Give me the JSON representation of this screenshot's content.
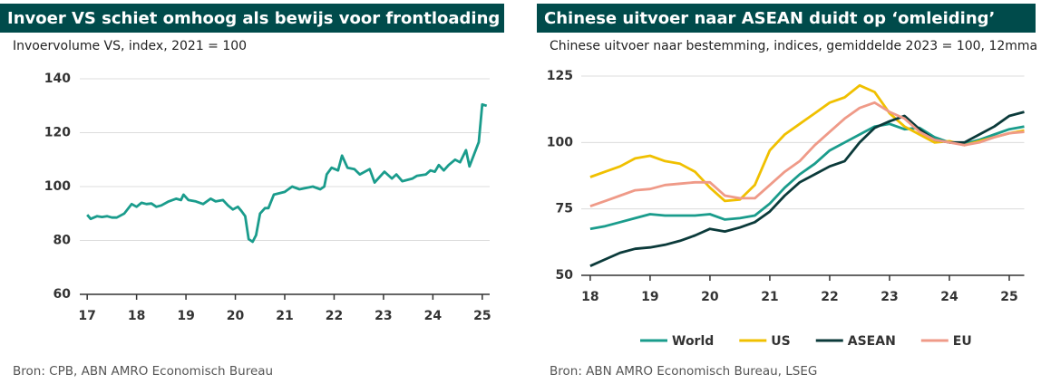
{
  "chart_data": [
    {
      "type": "line",
      "title": "Invoer VS schiet omhoog als bewijs voor frontloading",
      "subtitle": "Invoervolume VS, index, 2021 = 100",
      "source": "Bron: CPB, ABN AMRO Economisch Bureau",
      "color": "#1a9c8c",
      "x": [
        2017.0,
        2017.07,
        2017.2,
        2017.3,
        2017.4,
        2017.5,
        2017.6,
        2017.75,
        2017.9,
        2018.0,
        2018.1,
        2018.2,
        2018.3,
        2018.4,
        2018.5,
        2018.65,
        2018.8,
        2018.9,
        2018.95,
        2019.05,
        2019.2,
        2019.35,
        2019.5,
        2019.6,
        2019.75,
        2019.85,
        2019.95,
        2020.05,
        2020.12,
        2020.2,
        2020.27,
        2020.35,
        2020.42,
        2020.5,
        2020.6,
        2020.67,
        2020.78,
        2021.0,
        2021.15,
        2021.3,
        2021.57,
        2021.72,
        2021.8,
        2021.85,
        2021.95,
        2022.08,
        2022.16,
        2022.27,
        2022.41,
        2022.52,
        2022.72,
        2022.82,
        2023.02,
        2023.17,
        2023.26,
        2023.38,
        2023.59,
        2023.68,
        2023.86,
        2023.95,
        2024.04,
        2024.12,
        2024.22,
        2024.32,
        2024.45,
        2024.55,
        2024.67,
        2024.74,
        2024.93,
        2025.0,
        2025.09
      ],
      "values": [
        89.5,
        88,
        89,
        88.7,
        89,
        88.5,
        88.5,
        90,
        93.5,
        92.5,
        94,
        93.5,
        93.7,
        92.5,
        93,
        94.5,
        95.5,
        95,
        97,
        95,
        94.5,
        93.5,
        95.5,
        94.5,
        95,
        93,
        91.5,
        92.5,
        91,
        89,
        80.5,
        79.5,
        82,
        90,
        92,
        92,
        97,
        98,
        100,
        99,
        100,
        99,
        100,
        104.5,
        107,
        106,
        111.5,
        107,
        106.5,
        104.5,
        106.5,
        101.5,
        105.5,
        103,
        104.5,
        102,
        103,
        104,
        104.5,
        106,
        105.5,
        108,
        106,
        108,
        110,
        109,
        113.5,
        107.5,
        116.5,
        130.5,
        130
      ],
      "xlim": [
        2016.85,
        2025.15
      ],
      "xticks": [
        {
          "value": 2017,
          "label": "17"
        },
        {
          "value": 2018,
          "label": "18"
        },
        {
          "value": 2019,
          "label": "19"
        },
        {
          "value": 2020,
          "label": "20"
        },
        {
          "value": 2021,
          "label": "21"
        },
        {
          "value": 2022,
          "label": "22"
        },
        {
          "value": 2023,
          "label": "23"
        },
        {
          "value": 2024,
          "label": "24"
        },
        {
          "value": 2025,
          "label": "25"
        }
      ],
      "ylim": [
        60,
        140
      ],
      "yticks": [
        60,
        80,
        100,
        120,
        140
      ],
      "grid": true
    },
    {
      "type": "line",
      "title": "Chinese uitvoer naar ASEAN duidt op ‘omleiding’",
      "subtitle": "Chinese uitvoer naar bestemming, indices, gemiddelde 2023 = 100, 12mma",
      "source": "Bron: ABN AMRO Economisch Bureau, LSEG",
      "x": [
        2018.0,
        2018.25,
        2018.5,
        2018.75,
        2019.0,
        2019.25,
        2019.5,
        2019.75,
        2020.0,
        2020.25,
        2020.5,
        2020.75,
        2021.0,
        2021.25,
        2021.5,
        2021.75,
        2022.0,
        2022.25,
        2022.5,
        2022.75,
        2023.0,
        2023.25,
        2023.5,
        2023.75,
        2024.0,
        2024.25,
        2024.5,
        2024.75,
        2025.0,
        2025.25
      ],
      "series": [
        {
          "name": "World",
          "color": "#1a9c8c",
          "values": [
            67.5,
            68.5,
            70,
            71.5,
            73,
            72.5,
            72.5,
            72.5,
            73,
            71,
            71.5,
            72.5,
            77,
            83,
            88,
            92,
            97,
            100,
            103,
            106,
            107,
            105,
            105.5,
            102,
            100,
            99.5,
            101,
            103,
            105,
            106
          ]
        },
        {
          "name": "US",
          "color": "#f0c000",
          "values": [
            87,
            89,
            91,
            94,
            95,
            93,
            92,
            89,
            83,
            78,
            78.5,
            84,
            97,
            103,
            107,
            111,
            115,
            117,
            121.5,
            119,
            111,
            106,
            103,
            100,
            100.5,
            99,
            100.5,
            102,
            103.5,
            104.5
          ]
        },
        {
          "name": "ASEAN",
          "color": "#0b3a3a",
          "values": [
            53.5,
            56,
            58.5,
            60,
            60.5,
            61.5,
            63,
            65,
            67.5,
            66.5,
            68,
            70,
            74,
            80,
            85,
            88,
            91,
            93,
            100,
            105.5,
            108,
            110,
            105,
            101,
            100,
            100,
            103,
            106,
            110,
            111.5
          ]
        },
        {
          "name": "EU",
          "color": "#ef9a88",
          "values": [
            76,
            78,
            80,
            82,
            82.5,
            84,
            84.5,
            85,
            85,
            80,
            79,
            79,
            84,
            89,
            93,
            99,
            104,
            109,
            113,
            115,
            111.5,
            109,
            104,
            101,
            100,
            99,
            100,
            102,
            103.5,
            104
          ]
        }
      ],
      "xlim": [
        2017.85,
        2025.25
      ],
      "xticks": [
        {
          "value": 2018,
          "label": "18"
        },
        {
          "value": 2019,
          "label": "19"
        },
        {
          "value": 2020,
          "label": "20"
        },
        {
          "value": 2021,
          "label": "21"
        },
        {
          "value": 2022,
          "label": "22"
        },
        {
          "value": 2023,
          "label": "23"
        },
        {
          "value": 2024,
          "label": "24"
        },
        {
          "value": 2025,
          "label": "25"
        }
      ],
      "ylim": [
        50,
        125
      ],
      "yticks": [
        50,
        75,
        100,
        125
      ],
      "grid": true,
      "legend": "bottom"
    }
  ]
}
